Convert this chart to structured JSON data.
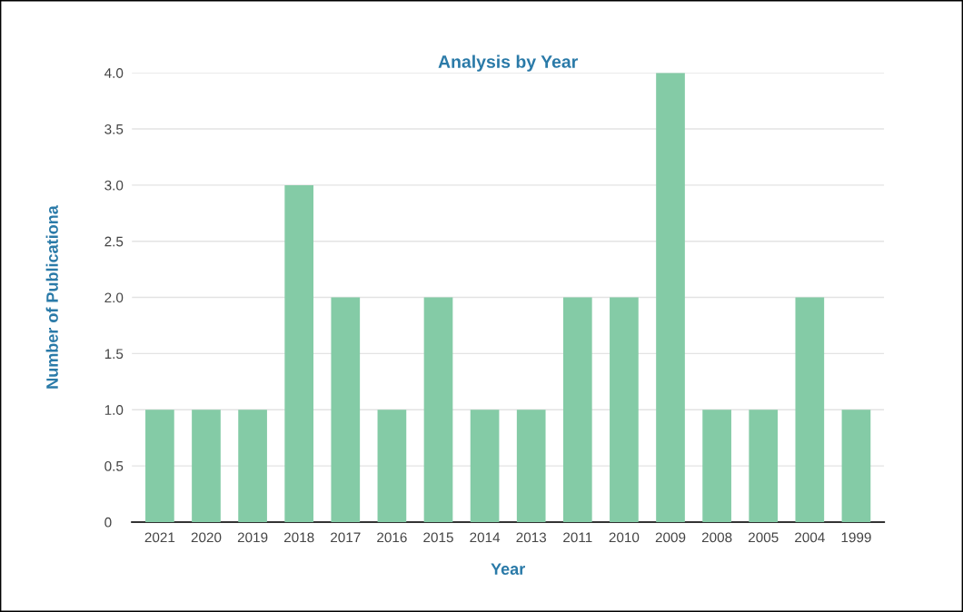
{
  "chart_data": {
    "type": "bar",
    "title": "Analysis by Year",
    "xlabel": "Year",
    "ylabel": "Number of Publicationa",
    "categories": [
      "2021",
      "2020",
      "2019",
      "2018",
      "2017",
      "2016",
      "2015",
      "2014",
      "2013",
      "2011",
      "2010",
      "2009",
      "2008",
      "2005",
      "2004",
      "1999"
    ],
    "values": [
      1,
      1,
      1,
      3,
      2,
      1,
      2,
      1,
      1,
      2,
      2,
      4,
      1,
      1,
      2,
      1
    ],
    "color": "#84cba6",
    "ylim": [
      0,
      4.0
    ],
    "yticks": [
      0,
      0.5,
      {
        "value": 1,
        "label": "1.0"
      },
      1.5,
      {
        "value": 2,
        "label": "2.0"
      },
      2.5,
      {
        "value": 3,
        "label": "3.0"
      },
      3.5,
      {
        "value": 4,
        "label": "4.0"
      }
    ],
    "grid": "y"
  }
}
